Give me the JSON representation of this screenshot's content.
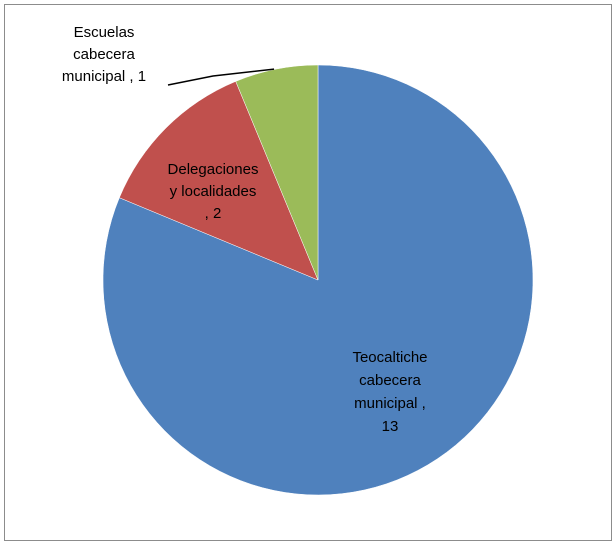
{
  "chart_data": {
    "type": "pie",
    "categories": [
      "Teocaltiche cabecera municipal",
      "Delegaciones y localidades",
      "Escuelas cabecera municipal"
    ],
    "values": [
      13,
      2,
      1
    ],
    "colors": [
      "#4f81bd",
      "#c0504d",
      "#9bbb59"
    ],
    "legend": "none",
    "data_labels": [
      {
        "lines": [
          "Teocaltiche",
          "cabecera",
          "municipal ,",
          "13"
        ]
      },
      {
        "lines": [
          "Delegaciones",
          "y localidades",
          ", 2"
        ]
      },
      {
        "lines": [
          "Escuelas",
          "cabecera",
          "municipal , 1"
        ]
      }
    ]
  }
}
